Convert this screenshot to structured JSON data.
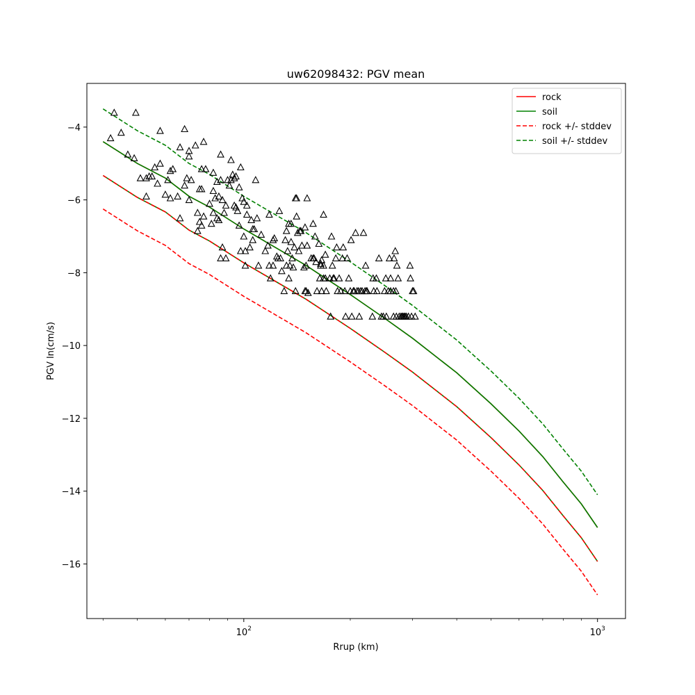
{
  "chart_data": {
    "type": "scatter",
    "title": "uw62098432: PGV mean",
    "xlabel": "Rrup (km)",
    "ylabel": "PGV ln(cm/s)",
    "xscale": "log",
    "xlim": [
      36,
      1200
    ],
    "ylim": [
      -17.5,
      -2.8
    ],
    "grid": false,
    "legend_position": "upper right",
    "x_tick_labels": [
      {
        "value": 100,
        "base": "10",
        "exp": "2"
      },
      {
        "value": 1000,
        "base": "10",
        "exp": "3"
      }
    ],
    "y_ticks": [
      -16,
      -14,
      -12,
      -10,
      -8,
      -6,
      -4
    ],
    "y_tick_labels": [
      "−16",
      "−14",
      "−12",
      "−10",
      "−8",
      "−6",
      "−4"
    ],
    "series": [
      {
        "name": "rock",
        "color": "#ff0000",
        "style": "solid",
        "x": [
          40,
          50,
          60,
          70,
          80,
          100,
          125,
          150,
          200,
          250,
          300,
          400,
          500,
          600,
          700,
          800,
          900,
          1000
        ],
        "y": [
          -4.4,
          -5.0,
          -5.4,
          -5.9,
          -6.2,
          -6.8,
          -7.35,
          -7.8,
          -8.6,
          -9.25,
          -9.8,
          -10.75,
          -11.6,
          -12.35,
          -13.05,
          -13.75,
          -14.35,
          -15.0
        ]
      },
      {
        "name": "soil",
        "color": "#008000",
        "style": "solid",
        "x": [
          40,
          50,
          60,
          70,
          80,
          100,
          125,
          150,
          200,
          250,
          300,
          400,
          500,
          600,
          700,
          800,
          900,
          1000
        ],
        "y": [
          -4.4,
          -5.0,
          -5.4,
          -5.9,
          -6.2,
          -6.8,
          -7.35,
          -7.8,
          -8.6,
          -9.25,
          -9.8,
          -10.75,
          -11.6,
          -12.35,
          -13.05,
          -13.75,
          -14.35,
          -15.0
        ]
      },
      {
        "name": "rock +/- stddev",
        "color": "#ff0000",
        "style": "dashed",
        "x": [
          40,
          50,
          60,
          70,
          80,
          100,
          125,
          150,
          200,
          250,
          300,
          400,
          500,
          600,
          700,
          800,
          900,
          1000
        ],
        "y": [
          -6.25,
          -6.85,
          -7.25,
          -7.75,
          -8.05,
          -8.65,
          -9.2,
          -9.65,
          -10.45,
          -11.1,
          -11.65,
          -12.6,
          -13.45,
          -14.2,
          -14.9,
          -15.6,
          -16.2,
          -16.85
        ]
      },
      {
        "name": "soil +/- stddev",
        "color": "#008000",
        "style": "dashed",
        "x": [
          40,
          50,
          60,
          70,
          80,
          100,
          125,
          150,
          200,
          250,
          300,
          400,
          500,
          600,
          700,
          800,
          900,
          1000
        ],
        "y": [
          -3.5,
          -4.1,
          -4.5,
          -5.0,
          -5.3,
          -5.9,
          -6.45,
          -6.9,
          -7.7,
          -8.35,
          -8.9,
          -9.85,
          -10.7,
          -11.45,
          -12.15,
          -12.85,
          -13.45,
          -14.1
        ]
      },
      {
        "name": "",
        "color": "#008000",
        "style": "solid",
        "x": [
          40,
          50,
          60,
          70,
          80,
          100,
          125,
          150,
          200,
          250,
          300,
          400,
          500,
          600,
          700,
          800,
          900,
          1000
        ],
        "y": [
          -5.33,
          -5.93,
          -6.33,
          -6.83,
          -7.13,
          -7.73,
          -8.28,
          -8.73,
          -9.53,
          -10.18,
          -10.73,
          -11.68,
          -12.53,
          -13.28,
          -13.98,
          -14.68,
          -15.28,
          -15.93
        ]
      },
      {
        "name": "",
        "color": "#ff0000",
        "style": "dashed",
        "x": [
          40,
          50,
          60,
          70,
          80,
          100,
          125,
          150,
          200,
          250,
          300,
          400,
          500,
          600,
          700,
          800,
          900,
          1000
        ],
        "y": [
          -5.33,
          -5.93,
          -6.33,
          -6.83,
          -7.13,
          -7.73,
          -8.28,
          -8.73,
          -9.53,
          -10.18,
          -10.73,
          -11.68,
          -12.53,
          -13.28,
          -13.98,
          -14.68,
          -15.28,
          -15.93
        ]
      }
    ],
    "observations": {
      "marker": "triangle",
      "color": "#000000",
      "points": [
        [
          42,
          -4.3
        ],
        [
          43,
          -3.6
        ],
        [
          45,
          -4.15
        ],
        [
          47,
          -4.75
        ],
        [
          49,
          -4.85
        ],
        [
          49.5,
          -3.6
        ],
        [
          51,
          -5.4
        ],
        [
          53,
          -5.4
        ],
        [
          53,
          -5.9
        ],
        [
          54,
          -5.35
        ],
        [
          55,
          -5.35
        ],
        [
          56,
          -5.1
        ],
        [
          57,
          -5.55
        ],
        [
          58,
          -5.0
        ],
        [
          58,
          -4.1
        ],
        [
          60,
          -5.85
        ],
        [
          61,
          -5.45
        ],
        [
          62,
          -5.95
        ],
        [
          62,
          -5.2
        ],
        [
          63,
          -5.15
        ],
        [
          65,
          -5.9
        ],
        [
          66,
          -4.55
        ],
        [
          66,
          -6.5
        ],
        [
          68,
          -4.05
        ],
        [
          68,
          -5.6
        ],
        [
          69,
          -5.4
        ],
        [
          70,
          -4.65
        ],
        [
          70,
          -6.0
        ],
        [
          70,
          -4.8
        ],
        [
          71,
          -5.45
        ],
        [
          73,
          -4.5
        ],
        [
          74,
          -6.35
        ],
        [
          74,
          -6.85
        ],
        [
          75,
          -6.6
        ],
        [
          75,
          -5.7
        ],
        [
          76,
          -6.7
        ],
        [
          76,
          -5.15
        ],
        [
          76,
          -5.7
        ],
        [
          77,
          -4.4
        ],
        [
          77,
          -6.45
        ],
        [
          78,
          -5.15
        ],
        [
          80,
          -6.1
        ],
        [
          81,
          -6.65
        ],
        [
          82,
          -5.25
        ],
        [
          82,
          -6.35
        ],
        [
          82,
          -5.75
        ],
        [
          83,
          -5.95
        ],
        [
          84,
          -5.5
        ],
        [
          84,
          -6.5
        ],
        [
          85,
          -6.55
        ],
        [
          85,
          -5.9
        ],
        [
          86,
          -5.45
        ],
        [
          86,
          -4.75
        ],
        [
          86,
          -7.6
        ],
        [
          87,
          -6.0
        ],
        [
          87,
          -7.3
        ],
        [
          88,
          -6.35
        ],
        [
          89,
          -7.6
        ],
        [
          89,
          -6.15
        ],
        [
          90,
          -5.45
        ],
        [
          91,
          -5.6
        ],
        [
          92,
          -5.45
        ],
        [
          92,
          -4.9
        ],
        [
          93,
          -5.3
        ],
        [
          94,
          -6.15
        ],
        [
          94,
          -5.4
        ],
        [
          95,
          -6.2
        ],
        [
          95,
          -5.35
        ],
        [
          96,
          -6.3
        ],
        [
          97,
          -6.7
        ],
        [
          97,
          -5.65
        ],
        [
          98,
          -7.4
        ],
        [
          98,
          -5.1
        ],
        [
          99,
          -5.95
        ],
        [
          100,
          -6.05
        ],
        [
          100,
          -7.0
        ],
        [
          101,
          -7.4
        ],
        [
          101,
          -7.8
        ],
        [
          102,
          -6.15
        ],
        [
          102,
          -6.4
        ],
        [
          104,
          -7.3
        ],
        [
          105,
          -6.55
        ],
        [
          106,
          -7.1
        ],
        [
          106,
          -6.8
        ],
        [
          107,
          -6.8
        ],
        [
          108,
          -5.45
        ],
        [
          109,
          -6.5
        ],
        [
          110,
          -7.8
        ],
        [
          112,
          -6.95
        ],
        [
          115,
          -7.4
        ],
        [
          117,
          -7.25
        ],
        [
          118,
          -7.8
        ],
        [
          118,
          -6.4
        ],
        [
          119,
          -8.15
        ],
        [
          121,
          -7.8
        ],
        [
          121,
          -7.1
        ],
        [
          122,
          -7.05
        ],
        [
          124,
          -7.55
        ],
        [
          125,
          -7.6
        ],
        [
          126,
          -6.3
        ],
        [
          127,
          -7.6
        ],
        [
          128,
          -7.95
        ],
        [
          130,
          -8.5
        ],
        [
          131,
          -7.1
        ],
        [
          132,
          -7.8
        ],
        [
          132,
          -6.85
        ],
        [
          133,
          -7.4
        ],
        [
          134,
          -6.65
        ],
        [
          134,
          -8.15
        ],
        [
          135,
          -7.8
        ],
        [
          136,
          -7.15
        ],
        [
          136,
          -6.65
        ],
        [
          137,
          -7.6
        ],
        [
          138,
          -7.85
        ],
        [
          139,
          -7.3
        ],
        [
          140,
          -5.95
        ],
        [
          140,
          -8.5
        ],
        [
          141,
          -6.45
        ],
        [
          141,
          -5.95
        ],
        [
          142,
          -6.9
        ],
        [
          143,
          -7.4
        ],
        [
          144,
          -6.85
        ],
        [
          145,
          -6.85
        ],
        [
          146,
          -7.25
        ],
        [
          148,
          -7.85
        ],
        [
          149,
          -8.5
        ],
        [
          149,
          -6.75
        ],
        [
          150,
          -7.8
        ],
        [
          150,
          -8.5
        ],
        [
          151,
          -7.25
        ],
        [
          151,
          -5.95
        ],
        [
          152,
          -8.55
        ],
        [
          155,
          -7.6
        ],
        [
          157,
          -6.65
        ],
        [
          157,
          -7.6
        ],
        [
          158,
          -7.6
        ],
        [
          159,
          -7.0
        ],
        [
          160,
          -7.7
        ],
        [
          161,
          -8.5
        ],
        [
          163,
          -7.2
        ],
        [
          164,
          -8.15
        ],
        [
          165,
          -7.75
        ],
        [
          165,
          -7.8
        ],
        [
          166,
          -8.5
        ],
        [
          166,
          -7.65
        ],
        [
          168,
          -6.4
        ],
        [
          168,
          -7.8
        ],
        [
          168,
          -8.15
        ],
        [
          170,
          -7.5
        ],
        [
          170,
          -8.15
        ],
        [
          171,
          -8.5
        ],
        [
          175,
          -8.15
        ],
        [
          176,
          -9.2
        ],
        [
          177,
          -7.0
        ],
        [
          178,
          -7.8
        ],
        [
          179,
          -8.15
        ],
        [
          180,
          -8.15
        ],
        [
          182,
          -7.6
        ],
        [
          183,
          -7.3
        ],
        [
          184,
          -8.5
        ],
        [
          186,
          -8.15
        ],
        [
          188,
          -8.5
        ],
        [
          190,
          -7.6
        ],
        [
          191,
          -7.3
        ],
        [
          193,
          -8.5
        ],
        [
          194,
          -9.2
        ],
        [
          196,
          -7.6
        ],
        [
          198,
          -8.15
        ],
        [
          200,
          -8.5
        ],
        [
          201,
          -7.1
        ],
        [
          202,
          -9.2
        ],
        [
          204,
          -8.5
        ],
        [
          205,
          -8.5
        ],
        [
          207,
          -6.9
        ],
        [
          209,
          -8.5
        ],
        [
          211,
          -8.5
        ],
        [
          212,
          -9.2
        ],
        [
          214,
          -8.5
        ],
        [
          216,
          -8.5
        ],
        [
          218,
          -6.9
        ],
        [
          220,
          -8.5
        ],
        [
          221,
          -7.8
        ],
        [
          222,
          -8.5
        ],
        [
          223,
          -8.5
        ],
        [
          231,
          -9.2
        ],
        [
          232,
          -8.15
        ],
        [
          233,
          -8.5
        ],
        [
          237,
          -8.15
        ],
        [
          238,
          -8.5
        ],
        [
          241,
          -7.6
        ],
        [
          245,
          -9.2
        ],
        [
          248,
          -9.2
        ],
        [
          250,
          -8.5
        ],
        [
          252,
          -8.15
        ],
        [
          253,
          -9.2
        ],
        [
          256,
          -8.5
        ],
        [
          258,
          -7.6
        ],
        [
          260,
          -8.15
        ],
        [
          260,
          -8.5
        ],
        [
          265,
          -8.5
        ],
        [
          265,
          -9.2
        ],
        [
          266,
          -7.6
        ],
        [
          268,
          -7.4
        ],
        [
          269,
          -8.5
        ],
        [
          270,
          -9.2
        ],
        [
          271,
          -7.8
        ],
        [
          273,
          -8.15
        ],
        [
          275,
          -9.2
        ],
        [
          278,
          -9.2
        ],
        [
          280,
          -9.2
        ],
        [
          282,
          -9.2
        ],
        [
          284,
          -9.2
        ],
        [
          286,
          -9.2
        ],
        [
          288,
          -9.2
        ],
        [
          292,
          -9.2
        ],
        [
          295,
          -7.8
        ],
        [
          296,
          -8.15
        ],
        [
          298,
          -9.2
        ],
        [
          300,
          -8.5
        ],
        [
          302,
          -8.5
        ],
        [
          305,
          -9.2
        ]
      ]
    }
  }
}
